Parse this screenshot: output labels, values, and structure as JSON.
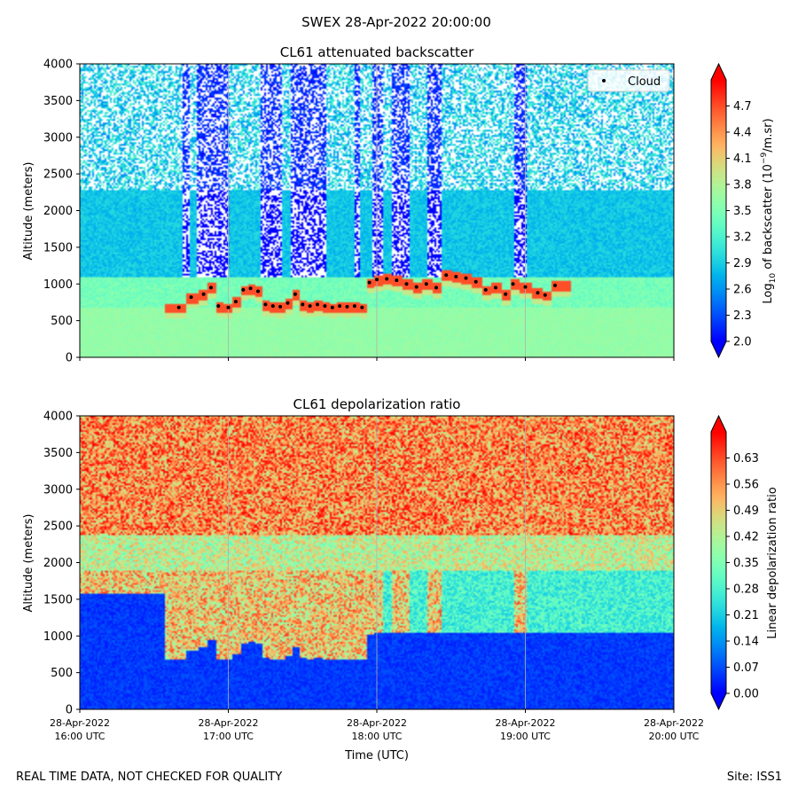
{
  "suptitle": "SWEX 28-Apr-2022 20:00:00",
  "footer": {
    "left": "REAL TIME DATA, NOT CHECKED FOR QUALITY",
    "right": "Site: ISS1"
  },
  "colors": {
    "colormap": "rainbow",
    "cloud_marker": "#000000",
    "background": "#ffffff"
  },
  "chart_data": [
    {
      "type": "heatmap",
      "title": "CL61 attenuated backscatter",
      "ylabel": "Altitude (meters)",
      "xlabel": "",
      "ylim": [
        0,
        4000
      ],
      "yticks": [
        0,
        500,
        1000,
        1500,
        2000,
        2500,
        3000,
        3500,
        4000
      ],
      "xlim": [
        "2022-04-28 16:00",
        "2022-04-28 20:00"
      ],
      "xticks": [
        "2022-04-28 16:00",
        "2022-04-28 17:00",
        "2022-04-28 18:00",
        "2022-04-28 19:00",
        "2022-04-28 20:00"
      ],
      "grid": "vertical",
      "colorbar": {
        "label_parts": [
          "Log",
          "10",
          " of backscatter (10",
          "−9",
          "/m.sr)"
        ],
        "min": 2.0,
        "max": 5.0,
        "ticks": [
          "2.0",
          "2.3",
          "2.6",
          "2.9",
          "3.2",
          "3.5",
          "3.8",
          "4.1",
          "4.4",
          "4.7"
        ],
        "extend": "both"
      },
      "legend": {
        "placement": "top-right",
        "entries": [
          "Cloud"
        ]
      },
      "cloud_base": {
        "name": "Cloud",
        "x": [
          "16:40",
          "16:45",
          "16:50",
          "16:53",
          "16:56",
          "17:00",
          "17:03",
          "17:06",
          "17:09",
          "17:12",
          "17:15",
          "17:18",
          "17:21",
          "17:24",
          "17:27",
          "17:30",
          "17:33",
          "17:36",
          "17:39",
          "17:42",
          "17:45",
          "17:48",
          "17:51",
          "17:54",
          "17:57",
          "18:00",
          "18:04",
          "18:08",
          "18:12",
          "18:16",
          "18:20",
          "18:24",
          "18:28",
          "18:32",
          "18:36",
          "18:40",
          "18:44",
          "18:48",
          "18:52",
          "18:55",
          "19:00",
          "19:05",
          "19:08",
          "19:12"
        ],
        "y": [
          680,
          820,
          860,
          950,
          700,
          680,
          760,
          920,
          940,
          900,
          720,
          700,
          690,
          740,
          860,
          720,
          700,
          720,
          700,
          680,
          700,
          690,
          700,
          680,
          1020,
          1060,
          1070,
          1050,
          1000,
          960,
          1000,
          950,
          1120,
          1100,
          1080,
          1030,
          920,
          950,
          860,
          1000,
          960,
          880,
          850,
          980
        ]
      }
    },
    {
      "type": "heatmap",
      "title": "CL61 depolarization ratio",
      "ylabel": "Altitude (meters)",
      "xlabel": "Time (UTC)",
      "ylim": [
        0,
        4000
      ],
      "yticks": [
        0,
        500,
        1000,
        1500,
        2000,
        2500,
        3000,
        3500,
        4000
      ],
      "xlim": [
        "2022-04-28 16:00",
        "2022-04-28 20:00"
      ],
      "xticks": [
        "2022-04-28 16:00",
        "2022-04-28 17:00",
        "2022-04-28 18:00",
        "2022-04-28 19:00",
        "2022-04-28 20:00"
      ],
      "xtick_labels": [
        [
          "28-Apr-2022",
          "16:00 UTC"
        ],
        [
          "28-Apr-2022",
          "17:00 UTC"
        ],
        [
          "28-Apr-2022",
          "18:00 UTC"
        ],
        [
          "28-Apr-2022",
          "19:00 UTC"
        ],
        [
          "28-Apr-2022",
          "20:00 UTC"
        ]
      ],
      "grid": "vertical",
      "colorbar": {
        "label_parts": [
          "Linear depolarization ratio"
        ],
        "min": 0.0,
        "max": 0.7,
        "ticks": [
          "0.00",
          "0.07",
          "0.14",
          "0.21",
          "0.28",
          "0.35",
          "0.42",
          "0.49",
          "0.56",
          "0.63"
        ],
        "extend": "both"
      }
    }
  ]
}
